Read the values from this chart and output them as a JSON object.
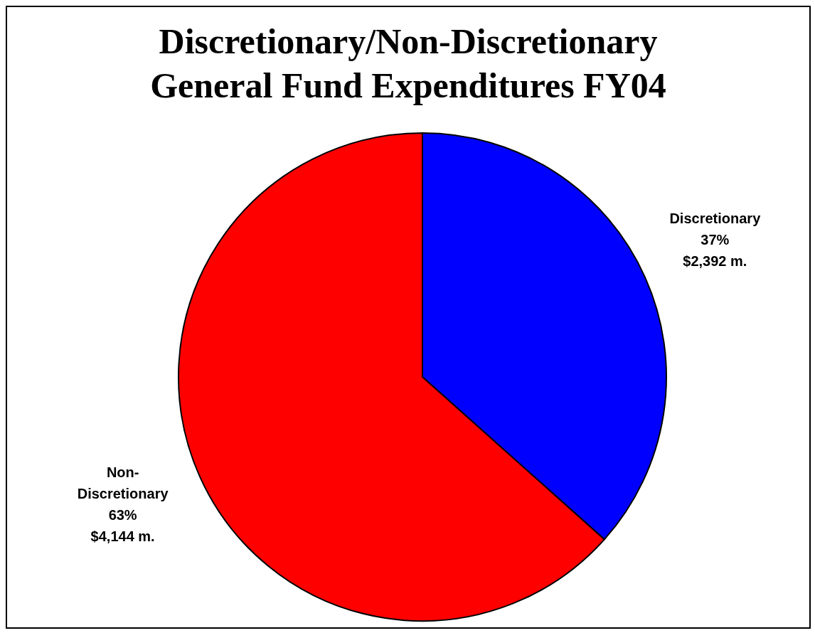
{
  "chart_data": {
    "type": "pie",
    "title": "Discretionary/Non-Discretionary\nGeneral Fund Expenditures FY04",
    "categories": [
      "Discretionary",
      "Non-Discretionary"
    ],
    "values": [
      2392,
      4144
    ],
    "colors": [
      "#0000ff",
      "#ff0000"
    ],
    "value_labels": [
      "37%\n$2,392 m.",
      "63%\n$4,144 m."
    ],
    "legend": false
  }
}
